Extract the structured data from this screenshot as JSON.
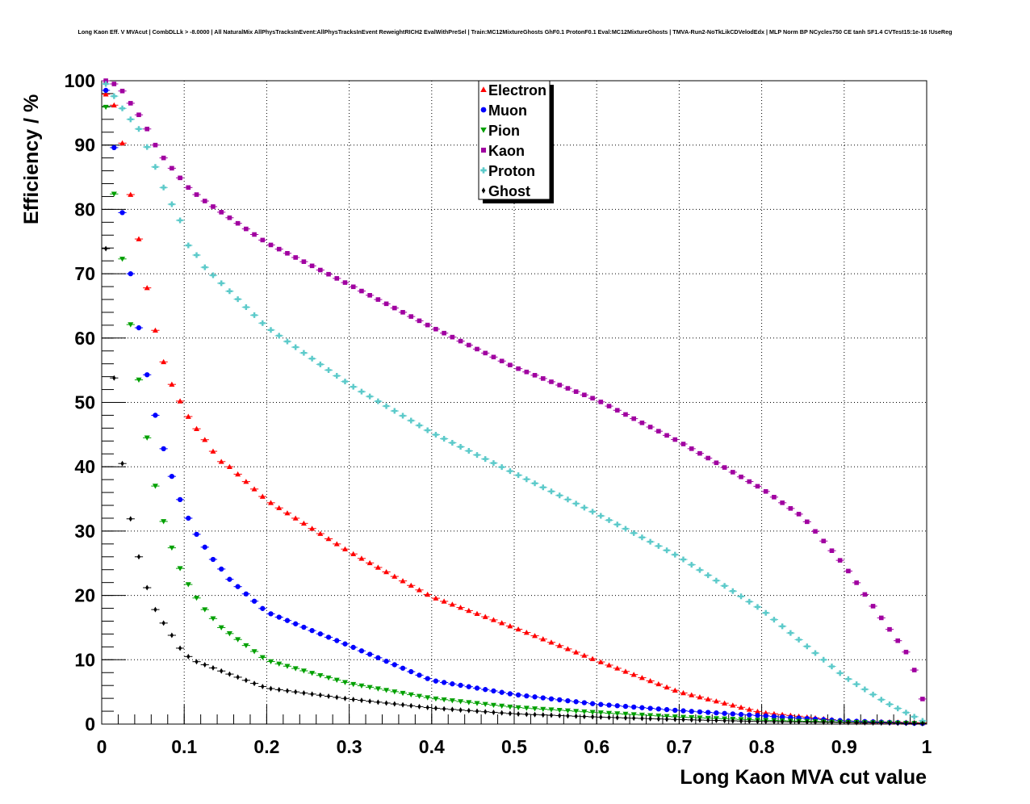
{
  "chart_data": {
    "type": "scatter",
    "title": "Long Kaon Eff. V MVAcut | CombDLLk > -8.0000 | All NaturalMix AllPhysTracksInEvent:AllPhysTracksInEvent ReweightRICH2 EvalWithPreSel | Train:MC12MixtureGhosts GhF0.1 ProtonF0.1 Eval:MC12MixtureGhosts | TMVA-Run2-NoTkLikCDVelodEdx | MLP Norm BP NCycles750 CE tanh SF1.4 CVTest15:1e-16 !UseReg",
    "xlabel": "Long Kaon MVA cut value",
    "ylabel": "Efficiency / %",
    "xlim": [
      0,
      1
    ],
    "ylim": [
      0,
      100
    ],
    "xticks": [
      "0",
      "0.1",
      "0.2",
      "0.3",
      "0.4",
      "0.5",
      "0.6",
      "0.7",
      "0.8",
      "0.9",
      "1"
    ],
    "yticks": [
      "0",
      "10",
      "20",
      "30",
      "40",
      "50",
      "60",
      "70",
      "80",
      "90",
      "100"
    ],
    "grid": true,
    "legend_position": "top-center",
    "bin_width": 0.01,
    "note": "values sampled at bin centres; intermediate bins interpolated",
    "series": [
      {
        "name": "Electron",
        "color": "#ff0000",
        "marker": "triangle-up",
        "x": [
          0.005,
          0.015,
          0.025,
          0.035,
          0.045,
          0.055,
          0.065,
          0.075,
          0.085,
          0.095,
          0.105,
          0.115,
          0.125,
          0.135,
          0.145,
          0.155,
          0.2,
          0.3,
          0.4,
          0.5,
          0.6,
          0.7,
          0.8,
          0.9,
          0.995
        ],
        "y": [
          97.9,
          96.2,
          90.3,
          82.3,
          75.4,
          67.8,
          61.2,
          56.3,
          52.8,
          50.2,
          47.8,
          45.9,
          44.2,
          42.4,
          40.8,
          40.0,
          34.8,
          26.8,
          19.8,
          15.0,
          9.9,
          5.0,
          1.8,
          0.5,
          0.2
        ]
      },
      {
        "name": "Muon",
        "color": "#0000ff",
        "marker": "circle",
        "x": [
          0.005,
          0.015,
          0.025,
          0.035,
          0.045,
          0.055,
          0.065,
          0.075,
          0.085,
          0.095,
          0.105,
          0.115,
          0.125,
          0.135,
          0.145,
          0.155,
          0.2,
          0.3,
          0.4,
          0.5,
          0.6,
          0.7,
          0.8,
          0.9,
          0.995
        ],
        "y": [
          98.5,
          89.6,
          79.5,
          70.0,
          61.6,
          54.3,
          48.0,
          42.8,
          38.5,
          34.9,
          32.0,
          29.5,
          27.5,
          25.6,
          24.1,
          22.5,
          17.4,
          12.2,
          6.8,
          4.6,
          3.1,
          2.1,
          1.3,
          0.5,
          0.1
        ]
      },
      {
        "name": "Pion",
        "color": "#00a000",
        "marker": "triangle-down",
        "x": [
          0.005,
          0.015,
          0.025,
          0.035,
          0.045,
          0.055,
          0.065,
          0.075,
          0.085,
          0.095,
          0.105,
          0.115,
          0.125,
          0.135,
          0.145,
          0.2,
          0.3,
          0.4,
          0.5,
          0.6,
          0.7,
          0.8,
          0.9,
          0.995
        ],
        "y": [
          95.9,
          82.4,
          72.3,
          62.1,
          53.5,
          44.5,
          37.0,
          31.5,
          27.4,
          24.2,
          21.7,
          19.6,
          17.8,
          16.4,
          15.0,
          9.9,
          6.3,
          4.0,
          2.6,
          1.8,
          1.1,
          0.6,
          0.3,
          0.1
        ]
      },
      {
        "name": "Kaon",
        "color": "#a000a0",
        "marker": "square",
        "x": [
          0.005,
          0.015,
          0.025,
          0.035,
          0.045,
          0.055,
          0.065,
          0.075,
          0.085,
          0.095,
          0.105,
          0.115,
          0.125,
          0.2,
          0.3,
          0.4,
          0.5,
          0.6,
          0.7,
          0.8,
          0.85,
          0.9,
          0.95,
          0.975,
          0.985,
          0.995
        ],
        "y": [
          100.0,
          99.5,
          98.4,
          96.5,
          94.7,
          92.5,
          90.0,
          88.0,
          86.4,
          84.9,
          83.4,
          82.3,
          81.3,
          74.8,
          68.3,
          61.7,
          55.5,
          50.4,
          43.9,
          36.6,
          32.2,
          24.7,
          15.6,
          11.2,
          8.4,
          3.9
        ]
      },
      {
        "name": "Proton",
        "color": "#5ccaca",
        "marker": "cross",
        "x": [
          0.005,
          0.015,
          0.025,
          0.035,
          0.045,
          0.055,
          0.065,
          0.075,
          0.085,
          0.095,
          0.105,
          0.115,
          0.125,
          0.2,
          0.3,
          0.4,
          0.5,
          0.6,
          0.7,
          0.8,
          0.9,
          0.95,
          0.995
        ],
        "y": [
          99.5,
          97.6,
          95.7,
          94.0,
          92.5,
          89.7,
          86.6,
          83.4,
          80.8,
          78.3,
          74.4,
          72.9,
          71.0,
          61.7,
          52.8,
          45.3,
          39.0,
          32.7,
          26.0,
          17.8,
          7.4,
          3.4,
          0.5
        ]
      },
      {
        "name": "Ghost",
        "color": "#000000",
        "marker": "diamond",
        "x": [
          0.005,
          0.015,
          0.025,
          0.035,
          0.045,
          0.055,
          0.065,
          0.075,
          0.085,
          0.095,
          0.105,
          0.115,
          0.2,
          0.3,
          0.4,
          0.5,
          0.6,
          0.7,
          0.8,
          0.995
        ],
        "y": [
          73.9,
          53.8,
          40.5,
          31.9,
          26.0,
          21.2,
          17.8,
          15.7,
          13.8,
          11.8,
          10.5,
          9.7,
          5.6,
          3.9,
          2.5,
          1.6,
          1.1,
          0.7,
          0.4,
          0.1
        ]
      }
    ]
  }
}
